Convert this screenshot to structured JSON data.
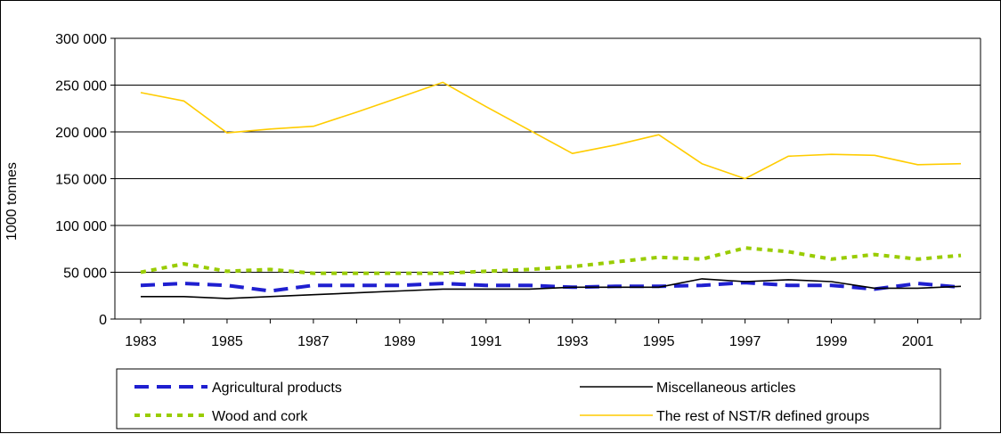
{
  "chart_data": {
    "type": "line",
    "title": "",
    "xlabel": "",
    "ylabel": "1000 tonnes",
    "ylim": [
      0,
      300000
    ],
    "yticks": [
      0,
      50000,
      100000,
      150000,
      200000,
      250000,
      300000
    ],
    "ytick_labels": [
      "0",
      "50 000",
      "100 000",
      "150 000",
      "200 000",
      "250 000",
      "300 000"
    ],
    "x": [
      1983,
      1984,
      1985,
      1986,
      1987,
      1988,
      1989,
      1990,
      1991,
      1992,
      1993,
      1994,
      1995,
      1996,
      1997,
      1998,
      1999,
      2000,
      2001,
      2002
    ],
    "xtick_labels": [
      "1983",
      "1985",
      "1987",
      "1989",
      "1991",
      "1993",
      "1995",
      "1997",
      "1999",
      "2001"
    ],
    "grid": true,
    "legend_position": "bottom",
    "series": [
      {
        "name": "Agricultural products",
        "color": "#1f1fd0",
        "style": "long-dash",
        "values": [
          36000,
          38000,
          36000,
          30000,
          36000,
          36000,
          36000,
          38000,
          36000,
          36000,
          34000,
          35000,
          35000,
          36000,
          39000,
          36000,
          36000,
          32000,
          38000,
          34000
        ]
      },
      {
        "name": "Miscellaneous articles",
        "color": "#000000",
        "style": "solid",
        "values": [
          24000,
          24000,
          22000,
          24000,
          26000,
          28000,
          30000,
          32000,
          32000,
          32000,
          34000,
          34000,
          34000,
          43000,
          40000,
          42000,
          40000,
          33000,
          33000,
          35000
        ]
      },
      {
        "name": "Wood and cork",
        "color": "#99cc00",
        "style": "dotted",
        "values": [
          50000,
          59000,
          51000,
          53000,
          49000,
          49000,
          49000,
          49000,
          51000,
          53000,
          56000,
          61000,
          66000,
          64000,
          76000,
          72000,
          64000,
          69000,
          64000,
          68000
        ]
      },
      {
        "name": "The rest of NST/R defined groups",
        "color": "#ffcc00",
        "style": "solid",
        "values": [
          242000,
          233000,
          199000,
          203000,
          206000,
          221000,
          237000,
          253000,
          227000,
          202000,
          177000,
          186000,
          197000,
          166000,
          150000,
          174000,
          176000,
          175000,
          165000,
          166000
        ]
      }
    ]
  }
}
